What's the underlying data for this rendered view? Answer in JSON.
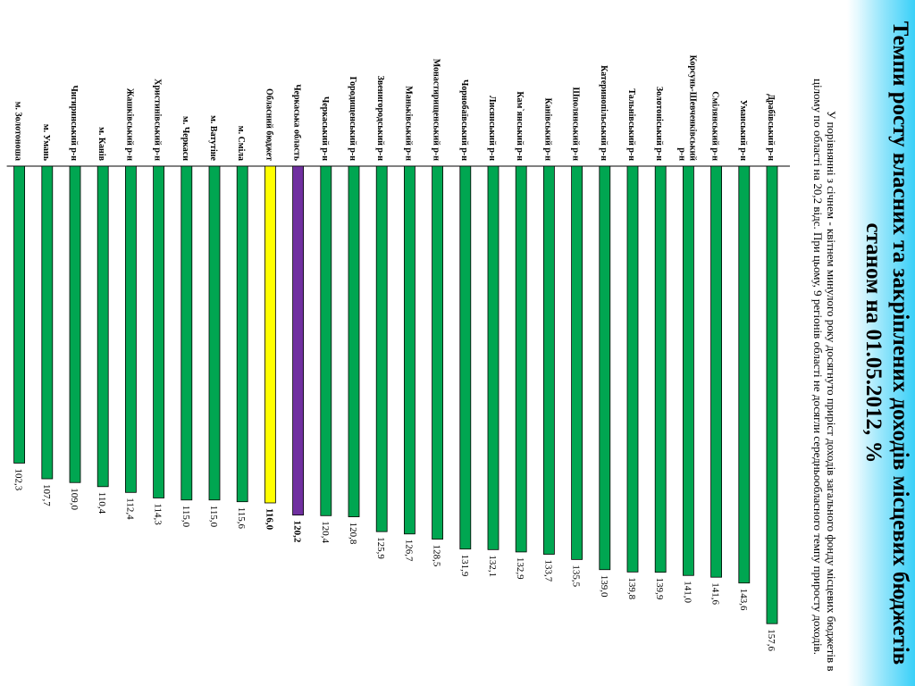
{
  "title": {
    "line1": "Темпи росту власних та закріплених доходів місцевих бюджетів",
    "line2": "станом на 01.05.2012, %"
  },
  "subtitle": "У порівнянні з січнем - квітнем минулого року досягнуто приріст доходів загального фонду місцевих бюджетів в цілому по області на 20,2 відс. При цьому, 9 регіонів області не досягли середньообласного темпу приросту доходів.",
  "colors": {
    "bar": "#00a651",
    "region": "#7030a0",
    "oblast_budget": "#ffff00",
    "bar_stroke": "#000000",
    "banner": "#3ad0f8"
  },
  "chart_data": {
    "type": "bar",
    "orientation": "horizontal",
    "title": "Темпи росту власних та закріплених доходів місцевих бюджетів станом на 01.05.2012, %",
    "xlabel": "",
    "ylabel": "",
    "xlim": [
      0,
      160
    ],
    "grid": false,
    "legend": "none",
    "categories": [
      "Драбівський р-н",
      "Уманський р-н",
      "Смілянський р-н",
      "Корсунь-Шевченківський р-н",
      "Золотоніський р-н",
      "Тальнівський р-н",
      "Катеринопільський р-н",
      "Шполянський р-н",
      "Канівський р-н",
      "Кам`янський р-н",
      "Лисянський р-н",
      "Чорнобаївський р-н",
      "Монастирищенський р-н",
      "Маньківський р-н",
      "Звенигородський р-н",
      "Городищенський р-н",
      "Черкаський р-н",
      "Черкаська область",
      "Обласний бюджет",
      "м. Сміла",
      "м. Ватутіне",
      "м. Черкаси",
      "Христинівський р-н",
      "Жашківський р-н",
      "м. Канів",
      "Чигиринський р-н",
      "м. Умань",
      "м. Золотоноша"
    ],
    "values": [
      157.6,
      143.6,
      141.6,
      141.0,
      139.9,
      139.8,
      139.0,
      135.5,
      133.7,
      132.9,
      132.1,
      131.9,
      128.5,
      126.7,
      125.9,
      120.8,
      120.4,
      120.2,
      116.0,
      115.6,
      115.0,
      115.0,
      114.3,
      112.4,
      110.4,
      109.0,
      107.7,
      102.3
    ],
    "value_labels": [
      "157,6",
      "143,6",
      "141,6",
      "141,0",
      "139,9",
      "139,8",
      "139,0",
      "135,5",
      "133,7",
      "132,9",
      "132,1",
      "131,9",
      "128,5",
      "126,7",
      "125,9",
      "120,8",
      "120,4",
      "120,2",
      "116,0",
      "115,6",
      "115,0",
      "115,0",
      "114,3",
      "112,4",
      "110,4",
      "109,0",
      "107,7",
      "102,3"
    ],
    "highlight": {
      "Черкаська область": "region",
      "Обласний бюджет": "oblast_budget"
    }
  }
}
